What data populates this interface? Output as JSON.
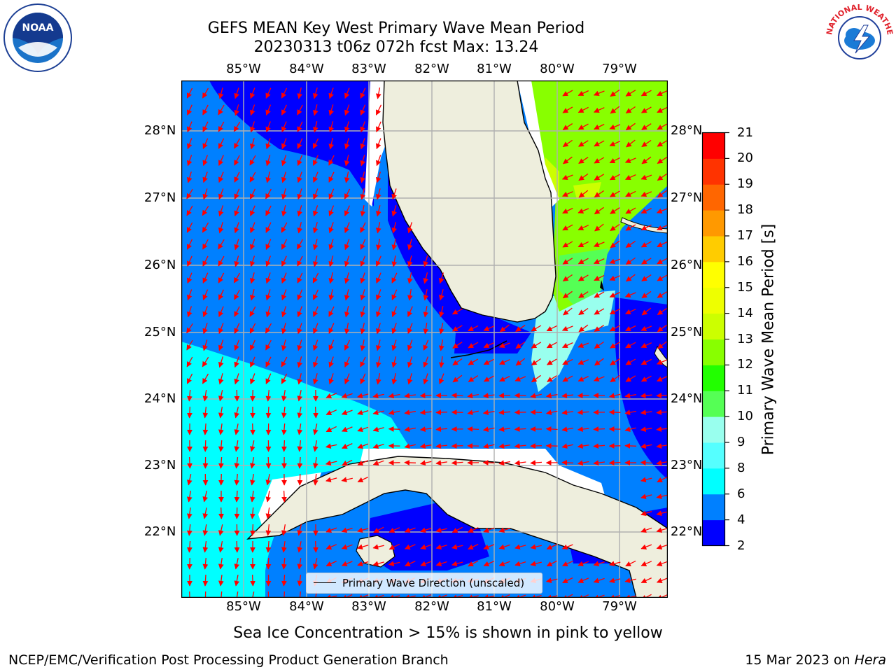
{
  "header": {
    "title_line1": "GEFS MEAN Key West Primary Wave Mean Period",
    "title_line2": "20230313 t06z 072h fcst   Max: 13.24"
  },
  "logos": {
    "left": "NOAA",
    "right": "NATIONAL WEATHER SERVICE"
  },
  "map": {
    "lon_labels": [
      "85°W",
      "84°W",
      "83°W",
      "82°W",
      "81°W",
      "80°W",
      "79°W"
    ],
    "lat_labels": [
      "28°N",
      "27°N",
      "26°N",
      "25°N",
      "24°N",
      "23°N",
      "22°N"
    ],
    "legend": "Primary Wave Direction (unscaled)",
    "colors": {
      "land": "#eeeedd",
      "arrow": "#ff0000",
      "grid": "#b0b0b0"
    }
  },
  "colorbar": {
    "label": "Primary Wave Mean Period [s]",
    "ticks": [
      "21",
      "20",
      "19",
      "18",
      "17",
      "16",
      "15",
      "14",
      "13",
      "12",
      "11",
      "10",
      "9",
      "8",
      "6",
      "4",
      "2"
    ],
    "colors": [
      "#0000ff",
      "#0080ff",
      "#00ffff",
      "#55ffff",
      "#99ffee",
      "#55ff55",
      "#22ff00",
      "#88ff00",
      "#ccff00",
      "#eeff00",
      "#ffff00",
      "#ffcc00",
      "#ff9900",
      "#ff6600",
      "#ff3300",
      "#ff0000"
    ]
  },
  "notes": {
    "ice": "Sea Ice Concentration > 15% is shown in pink to yellow",
    "footer_left": "NCEP/EMC/Verification Post Processing Product Generation Branch",
    "footer_date": "15 Mar 2023 on",
    "footer_host": "Hera"
  }
}
